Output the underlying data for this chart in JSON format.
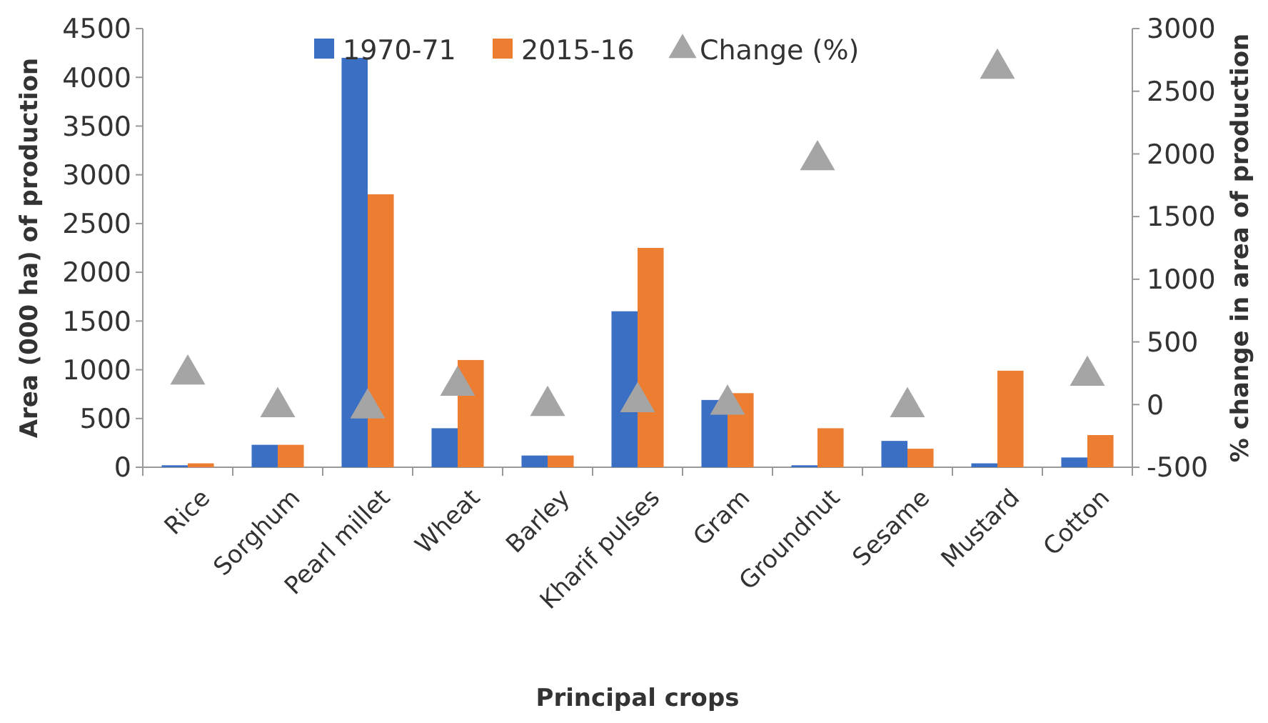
{
  "chart_data": {
    "type": "bar",
    "xlabel": "Principal crops",
    "ylabel": "Area (000 ha) of production",
    "y2label": "% change in area of production",
    "categories": [
      "Rice",
      "Sorghum",
      "Pearl millet",
      "Wheat",
      "Barley",
      "Kharif pulses",
      "Gram",
      "Groundnut",
      "Sesame",
      "Mustard",
      "Cotton"
    ],
    "series": [
      {
        "name": "1970-71",
        "color": "#3a6fc4",
        "values": [
          20,
          230,
          4200,
          400,
          120,
          1600,
          690,
          20,
          270,
          40,
          100
        ]
      },
      {
        "name": "2015-16",
        "color": "#ed7d31",
        "values": [
          40,
          230,
          2800,
          1100,
          120,
          2250,
          760,
          400,
          190,
          990,
          330
        ]
      },
      {
        "name": "Change (%)",
        "type": "scatter",
        "axis": "y2",
        "marker": "triangle",
        "color": "#a5a5a5",
        "values": [
          240,
          -20,
          -30,
          150,
          -10,
          20,
          0,
          1950,
          -20,
          2680,
          230
        ]
      }
    ],
    "ylim": [
      0,
      4500
    ],
    "yticks": [
      0,
      500,
      1000,
      1500,
      2000,
      2500,
      3000,
      3500,
      4000,
      4500
    ],
    "y2lim": [
      -500,
      3000
    ],
    "y2ticks": [
      -500,
      0,
      500,
      1000,
      1500,
      2000,
      2500,
      3000
    ],
    "legend": "top",
    "grid": false
  }
}
